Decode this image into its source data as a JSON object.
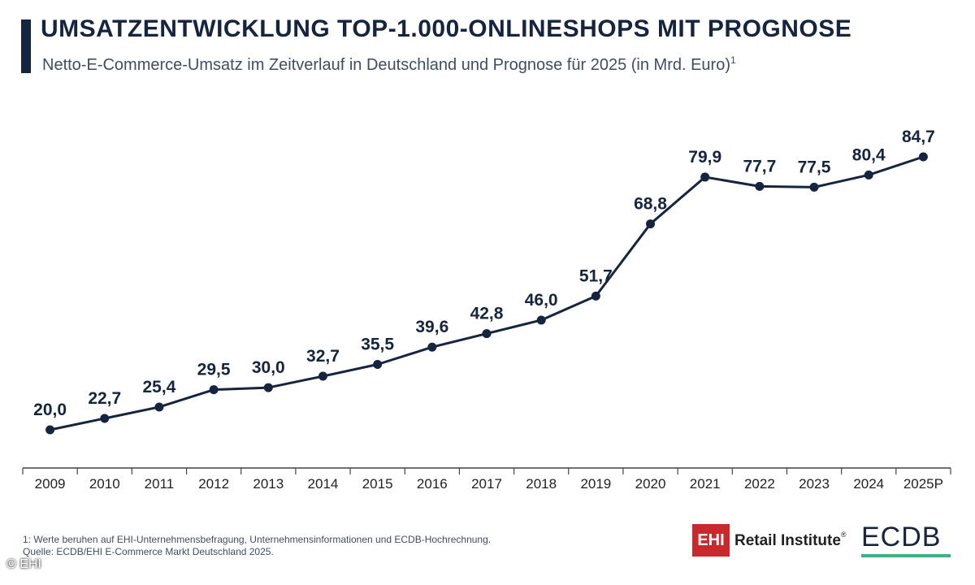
{
  "header": {
    "title": "UMSATZENTWICKLUNG TOP-1.000-ONLINESHOPS MIT PROGNOSE",
    "subtitle": "Netto-E-Commerce-Umsatz im Zeitverlauf in Deutschland und Prognose für 2025 (in Mrd. Euro)",
    "subtitle_footnote_mark": "1"
  },
  "chart_data": {
    "type": "line",
    "title": "UMSATZENTWICKLUNG TOP-1.000-ONLINESHOPS MIT PROGNOSE",
    "subtitle": "Netto-E-Commerce-Umsatz im Zeitverlauf in Deutschland und Prognose für 2025 (in Mrd. Euro)",
    "xlabel": "",
    "ylabel": "",
    "categories": [
      "2009",
      "2010",
      "2011",
      "2012",
      "2013",
      "2014",
      "2015",
      "2016",
      "2017",
      "2018",
      "2019",
      "2020",
      "2021",
      "2022",
      "2023",
      "2024",
      "2025P"
    ],
    "values": [
      20.0,
      22.7,
      25.4,
      29.5,
      30.0,
      32.7,
      35.5,
      39.6,
      42.8,
      46.0,
      51.7,
      68.8,
      79.9,
      77.7,
      77.5,
      80.4,
      84.7
    ],
    "value_labels": [
      "20,0",
      "22,7",
      "25,4",
      "29,5",
      "30,0",
      "32,7",
      "35,5",
      "39,6",
      "42,8",
      "46,0",
      "51,7",
      "68,8",
      "79,9",
      "77,7",
      "77,5",
      "80,4",
      "84,7"
    ],
    "ylim": [
      0,
      100
    ],
    "grid": false,
    "legend": "none",
    "line_color": "#15243f"
  },
  "footer": {
    "footnote": "1: Werte beruhen auf EHI-Unternehmensbefragung, Unternehmensinformationen und ECDB-Hochrechnung.",
    "source": "Quelle: ECDB/EHI E-Commerce Markt Deutschland 2025.",
    "copyright": "© EHI"
  },
  "logos": {
    "ehi_mark": "EHI",
    "ehi_text": "Retail Institute",
    "ehi_registered": "®",
    "ecdb_text": "ECDB",
    "ehi_color": "#c9282d",
    "ecdb_accent": "#3fae84"
  }
}
